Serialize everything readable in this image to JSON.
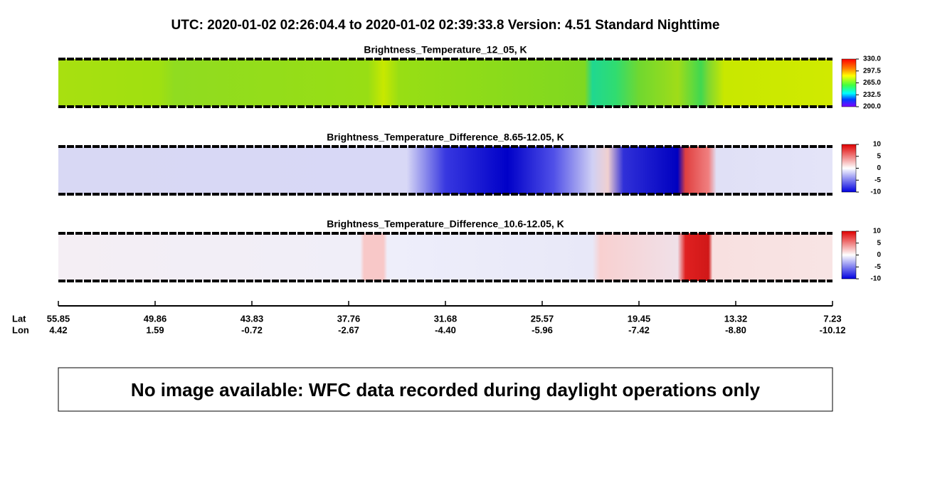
{
  "header": {
    "title": "UTC:  2020-01-02   02:26:04.4  to  2020-01-02   02:39:33.8    Version: 4.51  Standard Nighttime"
  },
  "panels": [
    {
      "title": "Brightness_Temperature_12_05, K",
      "colorbar": [
        "330.0",
        "297.5",
        "265.0",
        "232.5",
        "200.0"
      ]
    },
    {
      "title": "Brightness_Temperature_Difference_8.65-12.05, K",
      "colorbar": [
        "10",
        "5",
        "0",
        "-5",
        "-10"
      ]
    },
    {
      "title": "Brightness_Temperature_Difference_10.6-12.05, K",
      "colorbar": [
        "10",
        "5",
        "0",
        "-5",
        "-10"
      ]
    }
  ],
  "axis": {
    "lat_label": "Lat",
    "lon_label": "Lon",
    "lat": [
      "55.85",
      "49.86",
      "43.83",
      "37.76",
      "31.68",
      "25.57",
      "19.45",
      "13.32",
      "7.23"
    ],
    "lon": [
      "4.42",
      "1.59",
      "-0.72",
      "-2.67",
      "-4.40",
      "-5.96",
      "-7.42",
      "-8.80",
      "-10.12"
    ]
  },
  "notice": "No image available: WFC data recorded during daylight operations only"
}
